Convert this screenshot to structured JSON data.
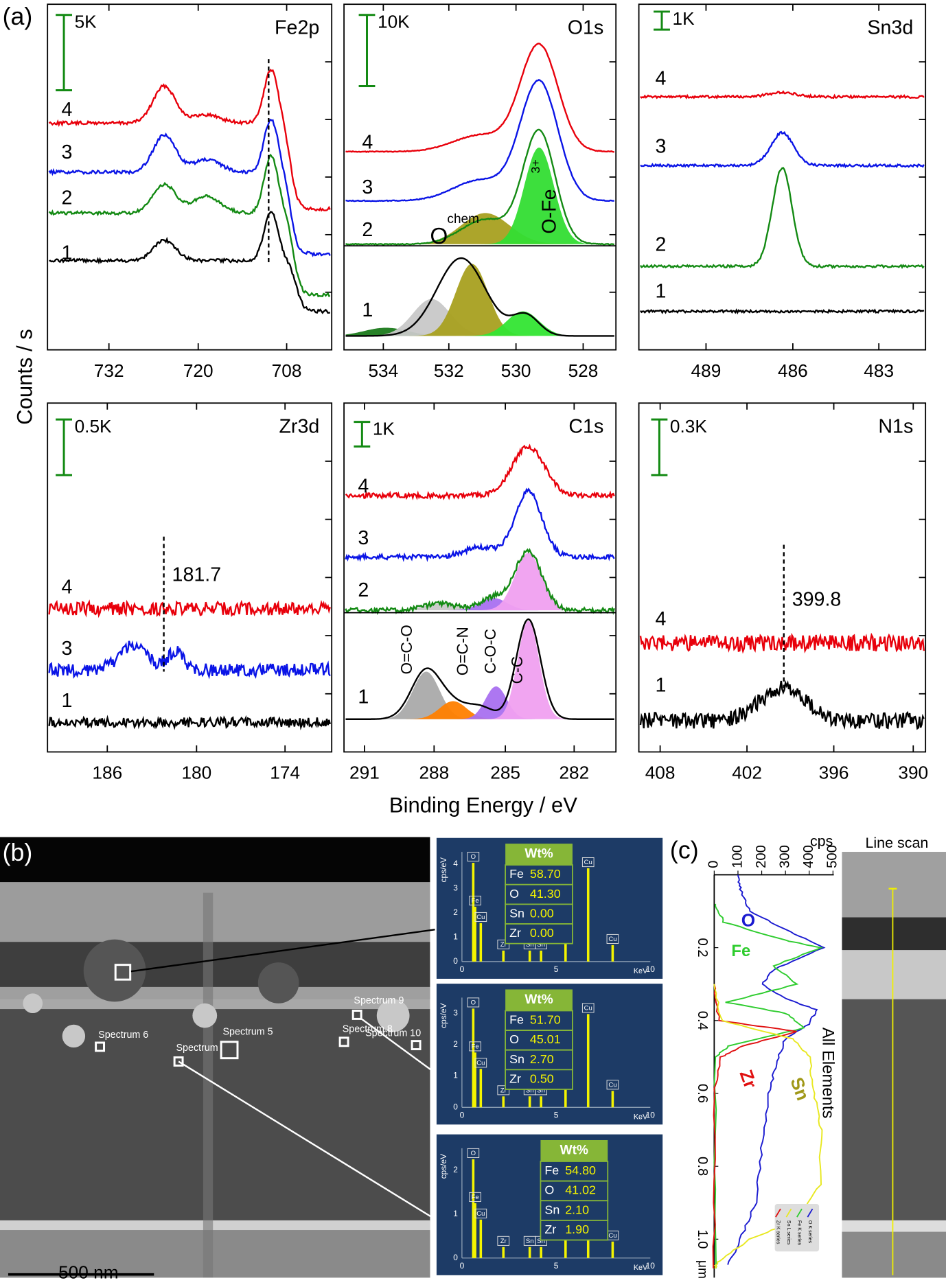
{
  "figure_labels": {
    "a": "(a)",
    "b": "(b)",
    "c": "(c)"
  },
  "xps": {
    "y_label": "Counts / s",
    "x_label": "Binding Energy / eV",
    "panels": [
      {
        "title": "Fe2p",
        "scale": "5K",
        "xticks": [
          "732",
          "720",
          "708"
        ],
        "traces": [
          "4",
          "3",
          "2",
          "1"
        ]
      },
      {
        "title": "O1s",
        "scale": "10K",
        "xticks": [
          "534",
          "532",
          "530",
          "528"
        ],
        "traces": [
          "4",
          "3",
          "2",
          "1"
        ],
        "annotations": [
          "O",
          "chem",
          "O-Fe",
          "3+"
        ]
      },
      {
        "title": "Sn3d",
        "scale": "1K",
        "xticks": [
          "489",
          "486",
          "483"
        ],
        "traces": [
          "4",
          "3",
          "2",
          "1"
        ]
      },
      {
        "title": "Zr3d",
        "scale": "0.5K",
        "xticks": [
          "186",
          "180",
          "174"
        ],
        "traces": [
          "4",
          "3",
          "1"
        ],
        "annotations": [
          "181.7"
        ]
      },
      {
        "title": "C1s",
        "scale": "1K",
        "xticks": [
          "291",
          "288",
          "285",
          "282"
        ],
        "traces": [
          "4",
          "3",
          "2",
          "1"
        ],
        "annotations": [
          "O=C-O",
          "O=C-N",
          "C-O-C",
          "C-C"
        ]
      },
      {
        "title": "N1s",
        "scale": "0.3K",
        "xticks": [
          "408",
          "402",
          "396",
          "390"
        ],
        "traces": [
          "4",
          "1"
        ],
        "annotations": [
          "399.8"
        ]
      }
    ]
  },
  "tem": {
    "spectrum_labels": [
      "Spectrum 9",
      "Spectrum 6",
      "Spectrum 5",
      "Spectrum 8",
      "Spectrum 10",
      "Spectrum"
    ],
    "scale_bar": "500 nm"
  },
  "eds": {
    "y_label": "cps/eV",
    "x_label": "KeV",
    "xticks": [
      "0",
      "5",
      "10"
    ],
    "spectra": [
      {
        "header": "Wt%",
        "rows": [
          [
            "Fe",
            "58.70"
          ],
          [
            "O",
            "41.30"
          ],
          [
            "Sn",
            "0.00"
          ],
          [
            "Zr",
            "0.00"
          ]
        ],
        "yticks": [
          "0",
          "1",
          "2",
          "3",
          "4"
        ],
        "peaks": [
          "O",
          "Fe",
          "Cu",
          "Zr",
          "Sn",
          "Sn",
          "Fe",
          "Cu",
          "Cu"
        ]
      },
      {
        "header": "Wt%",
        "rows": [
          [
            "Fe",
            "51.70"
          ],
          [
            "O",
            "45.01"
          ],
          [
            "Sn",
            "2.70"
          ],
          [
            "Zr",
            "0.50"
          ]
        ],
        "yticks": [
          "0",
          "1",
          "2",
          "3"
        ],
        "peaks": [
          "O",
          "Fe",
          "Cu",
          "Zr",
          "Sn",
          "Sn",
          "Fe",
          "Cu",
          "Cu"
        ]
      },
      {
        "header": "Wt%",
        "rows": [
          [
            "Fe",
            "54.80"
          ],
          [
            "O",
            "41.02"
          ],
          [
            "Sn",
            "2.10"
          ],
          [
            "Zr",
            "1.90"
          ]
        ],
        "yticks": [
          "0",
          "1",
          "2"
        ],
        "peaks": [
          "O",
          "Fe",
          "Cu",
          "Zr",
          "Sn",
          "Sn",
          "Fe",
          "Cu",
          "Cu"
        ]
      }
    ]
  },
  "line_profile": {
    "x_unit": "cps",
    "xticks": [
      "0",
      "100",
      "200",
      "300",
      "400",
      "500"
    ],
    "yticks": [
      "0.2",
      "0.4",
      "0.6",
      "0.8",
      "1.0"
    ],
    "y_unit": "μm",
    "labels": [
      "O",
      "Fe",
      "Zr",
      "Sn"
    ],
    "title": "All Elements",
    "legend": [
      "O K series",
      "Fe K series",
      "Sn L series",
      "Zr K series"
    ]
  },
  "line_scan": {
    "title": "Line scan"
  }
}
